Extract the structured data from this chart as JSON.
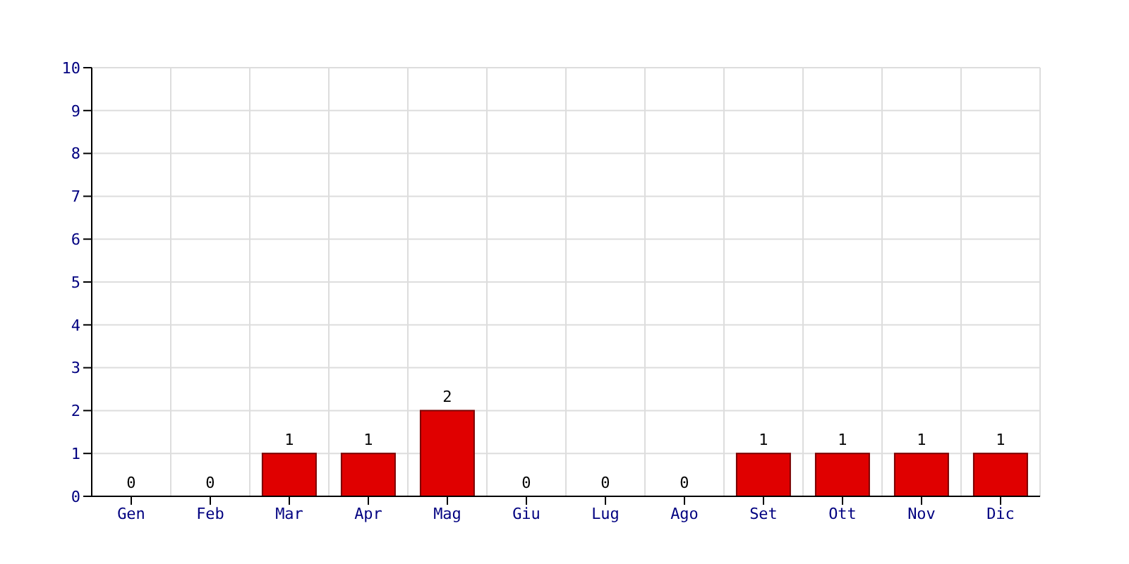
{
  "chart_data": {
    "type": "bar",
    "categories": [
      "Gen",
      "Feb",
      "Mar",
      "Apr",
      "Mag",
      "Giu",
      "Lug",
      "Ago",
      "Set",
      "Ott",
      "Nov",
      "Dic"
    ],
    "values": [
      0,
      0,
      1,
      1,
      2,
      0,
      0,
      0,
      1,
      1,
      1,
      1
    ],
    "color": "#e00000",
    "ylim": [
      0,
      10
    ],
    "yticks": [
      0,
      1,
      2,
      3,
      4,
      5,
      6,
      7,
      8,
      9,
      10
    ],
    "grid": true,
    "data_labels": true
  }
}
